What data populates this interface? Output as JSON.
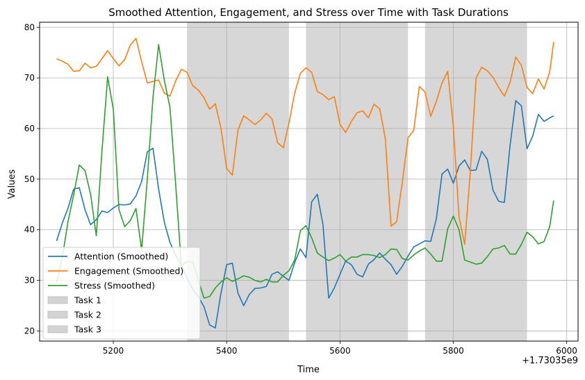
{
  "chart_data": {
    "type": "line",
    "title": "Smoothed Attention, Engagement, and Stress over Time with Task Durations",
    "xlabel": "Time",
    "ylabel": "Values",
    "x_offset_label": "+1.73035e9",
    "xlim": [
      5070,
      6020
    ],
    "ylim": [
      18,
      81
    ],
    "xticks": [
      5200,
      5400,
      5600,
      5800,
      6000
    ],
    "yticks": [
      20,
      30,
      40,
      50,
      60,
      70,
      80
    ],
    "grid": true,
    "legend_position": "lower-left",
    "x": [
      5100,
      5110,
      5120,
      5130,
      5140,
      5150,
      5160,
      5170,
      5180,
      5190,
      5200,
      5210,
      5220,
      5230,
      5240,
      5250,
      5260,
      5270,
      5280,
      5290,
      5300,
      5310,
      5320,
      5330,
      5340,
      5350,
      5360,
      5370,
      5380,
      5390,
      5400,
      5410,
      5420,
      5430,
      5440,
      5450,
      5460,
      5470,
      5480,
      5490,
      5500,
      5510,
      5520,
      5530,
      5540,
      5550,
      5560,
      5570,
      5580,
      5590,
      5600,
      5610,
      5620,
      5630,
      5640,
      5650,
      5660,
      5670,
      5680,
      5690,
      5700,
      5710,
      5720,
      5730,
      5740,
      5750,
      5760,
      5770,
      5780,
      5790,
      5800,
      5810,
      5820,
      5830,
      5840,
      5850,
      5860,
      5870,
      5880,
      5890,
      5900,
      5910,
      5920,
      5930,
      5940,
      5950,
      5960,
      5970,
      5977
    ],
    "series": [
      {
        "name": "Attention (Smoothed)",
        "color": "#1f77b4",
        "values": [
          37.8,
          41.3,
          44.2,
          48.0,
          48.3,
          44.0,
          41.0,
          42.0,
          43.7,
          43.4,
          44.3,
          45.0,
          44.9,
          45.1,
          46.7,
          49.5,
          55.4,
          56.1,
          48.0,
          41.5,
          37.5,
          35.0,
          33.0,
          30.5,
          28.3,
          26.8,
          24.8,
          21.2,
          20.6,
          27.5,
          33.1,
          33.4,
          27.5,
          25.0,
          27.2,
          28.4,
          28.5,
          28.8,
          31.2,
          31.7,
          30.8,
          30.0,
          33.5,
          36.2,
          34.5,
          45.5,
          47.0,
          41.0,
          26.5,
          28.5,
          31.2,
          33.8,
          33.1,
          31.2,
          30.7,
          33.2,
          34.1,
          35.4,
          34.2,
          33.1,
          31.2,
          32.8,
          34.8,
          36.6,
          37.2,
          37.8,
          37.7,
          42.2,
          51.0,
          52.0,
          49.2,
          52.6,
          53.8,
          51.7,
          51.8,
          55.5,
          53.9,
          47.8,
          45.6,
          45.4,
          56.6,
          65.5,
          64.5,
          56.0,
          58.5,
          62.8,
          61.4,
          62.1,
          62.5
        ]
      },
      {
        "name": "Engagement (Smoothed)",
        "color": "#ff7f0e",
        "values": [
          73.8,
          73.3,
          72.7,
          71.3,
          71.4,
          72.9,
          72.0,
          72.3,
          73.8,
          75.4,
          73.8,
          72.4,
          73.6,
          76.5,
          77.8,
          73.2,
          69.0,
          69.3,
          69.6,
          67.0,
          66.4,
          69.4,
          71.7,
          71.1,
          68.5,
          67.6,
          66.1,
          63.8,
          64.9,
          60.0,
          52.1,
          50.8,
          59.7,
          62.5,
          61.7,
          60.8,
          61.7,
          63.0,
          61.9,
          57.2,
          56.2,
          61.1,
          67.0,
          70.9,
          72.0,
          71.1,
          67.3,
          66.7,
          65.7,
          66.3,
          60.8,
          59.2,
          61.4,
          63.1,
          63.5,
          62.1,
          64.8,
          63.9,
          58.0,
          40.7,
          41.6,
          49.5,
          58.2,
          59.6,
          68.3,
          67.2,
          62.4,
          65.4,
          69.0,
          71.3,
          60.3,
          42.5,
          37.1,
          51.7,
          70.0,
          72.1,
          71.4,
          70.1,
          68.1,
          66.4,
          69.1,
          74.1,
          72.5,
          68.1,
          66.9,
          69.8,
          67.8,
          71.2,
          77.1
        ]
      },
      {
        "name": "Stress (Smoothed)",
        "color": "#2ca02c",
        "values": [
          29.6,
          34.4,
          41.6,
          46.8,
          52.8,
          51.7,
          47.0,
          38.8,
          55.5,
          70.2,
          63.8,
          44.0,
          40.6,
          41.8,
          44.2,
          36.0,
          50.0,
          66.2,
          76.6,
          69.5,
          64.2,
          49.0,
          33.0,
          33.7,
          33.6,
          30.1,
          26.5,
          26.8,
          28.5,
          29.7,
          30.5,
          29.8,
          30.3,
          30.9,
          30.6,
          30.0,
          29.7,
          30.2,
          29.7,
          29.7,
          31.0,
          31.9,
          34.0,
          39.8,
          40.8,
          38.4,
          35.4,
          34.6,
          33.9,
          34.4,
          35.1,
          33.8,
          34.6,
          34.6,
          35.1,
          35.1,
          34.9,
          34.5,
          35.1,
          36.2,
          36.1,
          34.3,
          34.0,
          35.0,
          35.8,
          36.4,
          35.2,
          33.8,
          33.8,
          40.2,
          42.7,
          40.0,
          34.0,
          33.6,
          33.2,
          33.4,
          34.7,
          36.2,
          36.4,
          36.9,
          35.2,
          35.2,
          37.1,
          39.5,
          38.6,
          37.2,
          37.7,
          40.6,
          45.8
        ]
      }
    ],
    "tasks": [
      {
        "name": "Task 1",
        "start": 5330,
        "end": 5510,
        "color": "#d3d3d3"
      },
      {
        "name": "Task 2",
        "start": 5540,
        "end": 5720,
        "color": "#d3d3d3"
      },
      {
        "name": "Task 3",
        "start": 5750,
        "end": 5930,
        "color": "#d3d3d3"
      }
    ]
  }
}
